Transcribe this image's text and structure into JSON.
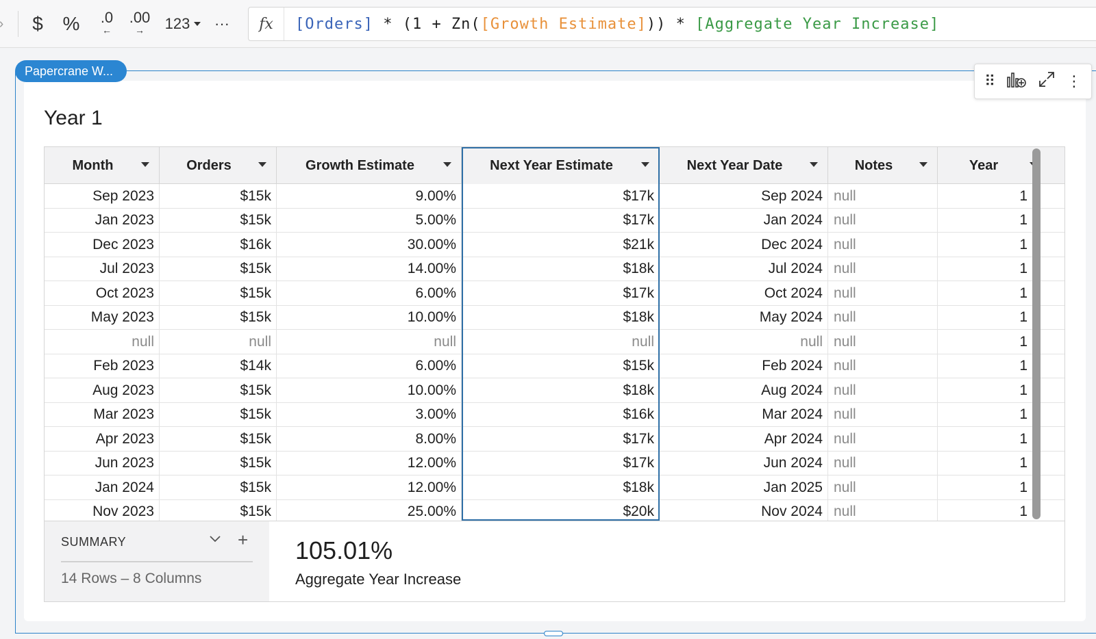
{
  "toolbar": {
    "currency_glyph": "$",
    "percent_glyph": "%",
    "decrease_decimals_glyph": ".0",
    "increase_decimals_glyph": ".00",
    "number_format_label": "123",
    "more_glyph": "···",
    "fx_glyph": "fx"
  },
  "formula": {
    "orders_ref": "[Orders]",
    "op1": " * (1 + Zn(",
    "growth_ref": "[Growth Estimate]",
    "op2": ")) * ",
    "agg_ref": "[Aggregate Year Increase]"
  },
  "container": {
    "tag_label": "Papercrane W..."
  },
  "element": {
    "title": "Year 1"
  },
  "table": {
    "columns": [
      {
        "label": "Month"
      },
      {
        "label": "Orders"
      },
      {
        "label": "Growth Estimate"
      },
      {
        "label": "Next Year Estimate"
      },
      {
        "label": "Next Year Date"
      },
      {
        "label": "Notes"
      },
      {
        "label": "Year"
      }
    ],
    "rows": [
      [
        "Sep 2023",
        "$15k",
        "9.00%",
        "$17k",
        "Sep 2024",
        "null",
        "1"
      ],
      [
        "Jan 2023",
        "$15k",
        "5.00%",
        "$17k",
        "Jan 2024",
        "null",
        "1"
      ],
      [
        "Dec 2023",
        "$16k",
        "30.00%",
        "$21k",
        "Dec 2024",
        "null",
        "1"
      ],
      [
        "Jul 2023",
        "$15k",
        "14.00%",
        "$18k",
        "Jul 2024",
        "null",
        "1"
      ],
      [
        "Oct 2023",
        "$15k",
        "6.00%",
        "$17k",
        "Oct 2024",
        "null",
        "1"
      ],
      [
        "May 2023",
        "$15k",
        "10.00%",
        "$18k",
        "May 2024",
        "null",
        "1"
      ],
      [
        "null",
        "null",
        "null",
        "null",
        "null",
        "null",
        "1"
      ],
      [
        "Feb 2023",
        "$14k",
        "6.00%",
        "$15k",
        "Feb 2024",
        "null",
        "1"
      ],
      [
        "Aug 2023",
        "$15k",
        "10.00%",
        "$18k",
        "Aug 2024",
        "null",
        "1"
      ],
      [
        "Mar 2023",
        "$15k",
        "3.00%",
        "$16k",
        "Mar 2024",
        "null",
        "1"
      ],
      [
        "Apr 2023",
        "$15k",
        "8.00%",
        "$17k",
        "Apr 2024",
        "null",
        "1"
      ],
      [
        "Jun 2023",
        "$15k",
        "12.00%",
        "$17k",
        "Jun 2024",
        "null",
        "1"
      ],
      [
        "Jan 2024",
        "$15k",
        "12.00%",
        "$18k",
        "Jan 2025",
        "null",
        "1"
      ],
      [
        "Nov 2023",
        "$15k",
        "25.00%",
        "$20k",
        "Nov 2024",
        "null",
        "1"
      ]
    ]
  },
  "summary": {
    "label": "SUMMARY",
    "counts": "14 Rows – 8 Columns",
    "metric_value": "105.01%",
    "metric_label": "Aggregate Year Increase"
  },
  "colors": {
    "accent": "#2b86d2",
    "selection": "#2f6fa6",
    "formula_field": "#3a64b8",
    "formula_field_alt": "#e8913a",
    "formula_field_agg": "#3a9a46"
  },
  "icons": [
    "currency-icon",
    "percent-icon",
    "decrease-decimals-icon",
    "increase-decimals-icon",
    "more-icon",
    "drag-handle-icon",
    "add-chart-icon",
    "expand-icon",
    "kebab-menu-icon",
    "chevron-down-icon",
    "plus-icon"
  ]
}
